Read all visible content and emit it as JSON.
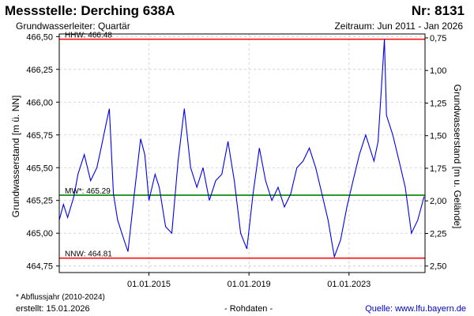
{
  "header": {
    "station": "Messstelle: Derching 638A",
    "number": "Nr: 8131",
    "aquifer": "Grundwasserleiter: Quartär",
    "period": "Zeitraum: Jun 2011 - Jan 2026"
  },
  "footer": {
    "footnote": "* Abflussjahr (2010-2024)",
    "created": "erstellt:  15.01.2026",
    "rawdata": "- Rohdaten -",
    "source": "Quelle:  www.lfu.bayern.de"
  },
  "colors": {
    "series": "#0000ee",
    "hhw": "#ff0000",
    "nnw": "#ff0000",
    "mw": "#008000",
    "grid": "#cccccc"
  },
  "chart_data": {
    "type": "line",
    "title": "",
    "ylabel": "Grundwasserstand [m ü. NN]",
    "y2label": "Grundwasserstand [m u. Gelände]",
    "xlabel": "",
    "xlim": [
      "2011-06-01",
      "2026-01-15"
    ],
    "ylim": [
      464.7,
      466.52
    ],
    "y2lim": [
      2.55,
      0.72
    ],
    "grid": true,
    "y_ticks": [
      464.75,
      465.0,
      465.25,
      465.5,
      465.75,
      466.0,
      466.25,
      466.5
    ],
    "y_tick_labels": [
      "464,75",
      "465,00",
      "465,25",
      "465,50",
      "465,75",
      "466,00",
      "466,25",
      "466,50"
    ],
    "y2_ticks": [
      0.75,
      1.0,
      1.25,
      1.5,
      1.75,
      2.0,
      2.25,
      2.5
    ],
    "y2_tick_labels": [
      "0,75",
      "1,00",
      "1,25",
      "1,50",
      "1,75",
      "2,00",
      "2,25",
      "2,50"
    ],
    "x_ticks": [
      "2015-01-01",
      "2019-01-01",
      "2023-01-01"
    ],
    "x_tick_labels": [
      "01.01.2015",
      "01.01.2019",
      "01.01.2023"
    ],
    "reference_lines": [
      {
        "label": "HHW: 466.48",
        "value": 466.48,
        "color": "#ff0000"
      },
      {
        "label": "MW*: 465.29",
        "value": 465.29,
        "color": "#008000"
      },
      {
        "label": "NNW: 464.81",
        "value": 464.81,
        "color": "#ff0000"
      }
    ],
    "series": [
      {
        "color": "#0000ee",
        "points": [
          [
            "2011-06-01",
            465.1
          ],
          [
            "2011-08-01",
            465.22
          ],
          [
            "2011-10-01",
            465.12
          ],
          [
            "2012-01-01",
            465.28
          ],
          [
            "2012-03-01",
            465.45
          ],
          [
            "2012-06-01",
            465.6
          ],
          [
            "2012-09-01",
            465.4
          ],
          [
            "2012-12-01",
            465.5
          ],
          [
            "2013-02-01",
            465.65
          ],
          [
            "2013-04-01",
            465.8
          ],
          [
            "2013-06-01",
            465.95
          ],
          [
            "2013-08-01",
            465.3
          ],
          [
            "2013-10-01",
            465.1
          ],
          [
            "2014-01-01",
            464.95
          ],
          [
            "2014-03-01",
            464.86
          ],
          [
            "2014-06-01",
            465.3
          ],
          [
            "2014-09-01",
            465.72
          ],
          [
            "2014-11-01",
            465.6
          ],
          [
            "2015-01-01",
            465.25
          ],
          [
            "2015-04-01",
            465.45
          ],
          [
            "2015-06-01",
            465.35
          ],
          [
            "2015-09-01",
            465.05
          ],
          [
            "2015-12-01",
            465.0
          ],
          [
            "2016-03-01",
            465.55
          ],
          [
            "2016-06-01",
            465.95
          ],
          [
            "2016-09-01",
            465.5
          ],
          [
            "2016-12-01",
            465.35
          ],
          [
            "2017-03-01",
            465.5
          ],
          [
            "2017-06-01",
            465.25
          ],
          [
            "2017-09-01",
            465.4
          ],
          [
            "2017-12-01",
            465.45
          ],
          [
            "2018-03-01",
            465.7
          ],
          [
            "2018-06-01",
            465.4
          ],
          [
            "2018-09-01",
            465.0
          ],
          [
            "2018-12-01",
            464.88
          ],
          [
            "2019-03-01",
            465.3
          ],
          [
            "2019-06-01",
            465.65
          ],
          [
            "2019-09-01",
            465.4
          ],
          [
            "2019-12-01",
            465.25
          ],
          [
            "2020-03-01",
            465.35
          ],
          [
            "2020-06-01",
            465.2
          ],
          [
            "2020-09-01",
            465.3
          ],
          [
            "2020-12-01",
            465.5
          ],
          [
            "2021-03-01",
            465.55
          ],
          [
            "2021-06-01",
            465.65
          ],
          [
            "2021-09-01",
            465.5
          ],
          [
            "2021-12-01",
            465.3
          ],
          [
            "2022-03-01",
            465.1
          ],
          [
            "2022-06-01",
            464.82
          ],
          [
            "2022-09-01",
            464.95
          ],
          [
            "2022-12-01",
            465.2
          ],
          [
            "2023-03-01",
            465.4
          ],
          [
            "2023-06-01",
            465.6
          ],
          [
            "2023-09-01",
            465.75
          ],
          [
            "2024-01-01",
            465.55
          ],
          [
            "2024-03-01",
            465.7
          ],
          [
            "2024-06-01",
            466.48
          ],
          [
            "2024-07-01",
            465.9
          ],
          [
            "2024-10-01",
            465.75
          ],
          [
            "2025-01-01",
            465.55
          ],
          [
            "2025-04-01",
            465.35
          ],
          [
            "2025-07-01",
            465.0
          ],
          [
            "2025-10-01",
            465.1
          ],
          [
            "2026-01-01",
            465.28
          ]
        ]
      }
    ]
  }
}
